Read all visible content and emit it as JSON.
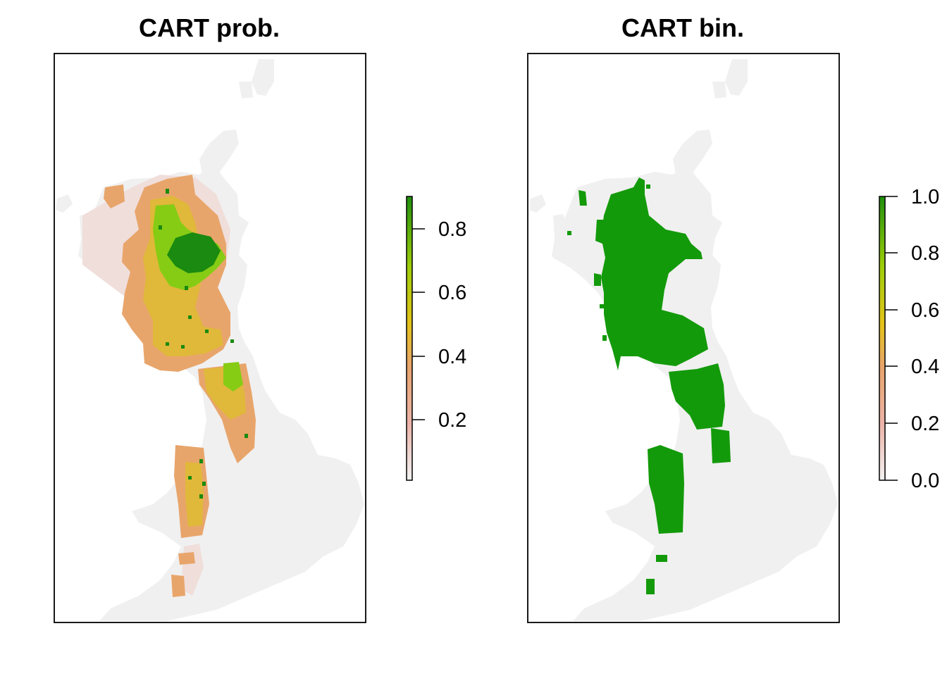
{
  "figure": {
    "panels": [
      {
        "id": "cart-prob",
        "title": "CART prob.",
        "legend": {
          "ticks": [
            "0.2",
            "0.4",
            "0.6",
            "0.8"
          ],
          "gradient": [
            "#f2f2f2",
            "#ebb3a8",
            "#e8a46c",
            "#e3c219",
            "#9fce0a",
            "#1f8f0c"
          ],
          "range": [
            0.02,
            0.89
          ]
        },
        "colors": {
          "background_land": "#f0f0f0",
          "low": "#f1e1df",
          "mid_low": "#e8a56b",
          "mid": "#e0b83a",
          "mid_high": "#86cc14",
          "high": "#1a8a10"
        }
      },
      {
        "id": "cart-bin",
        "title": "CART bin.",
        "legend": {
          "ticks": [
            "0.0",
            "0.2",
            "0.4",
            "0.6",
            "0.8",
            "1.0"
          ],
          "gradient": [
            "#f2f2f2",
            "#ebb3a8",
            "#e8a46c",
            "#e3c219",
            "#9fce0a",
            "#1f8f0c"
          ],
          "range": [
            0.0,
            1.0
          ]
        },
        "colors": {
          "background_land": "#f0f0f0",
          "presence": "#139a0a"
        }
      }
    ]
  }
}
